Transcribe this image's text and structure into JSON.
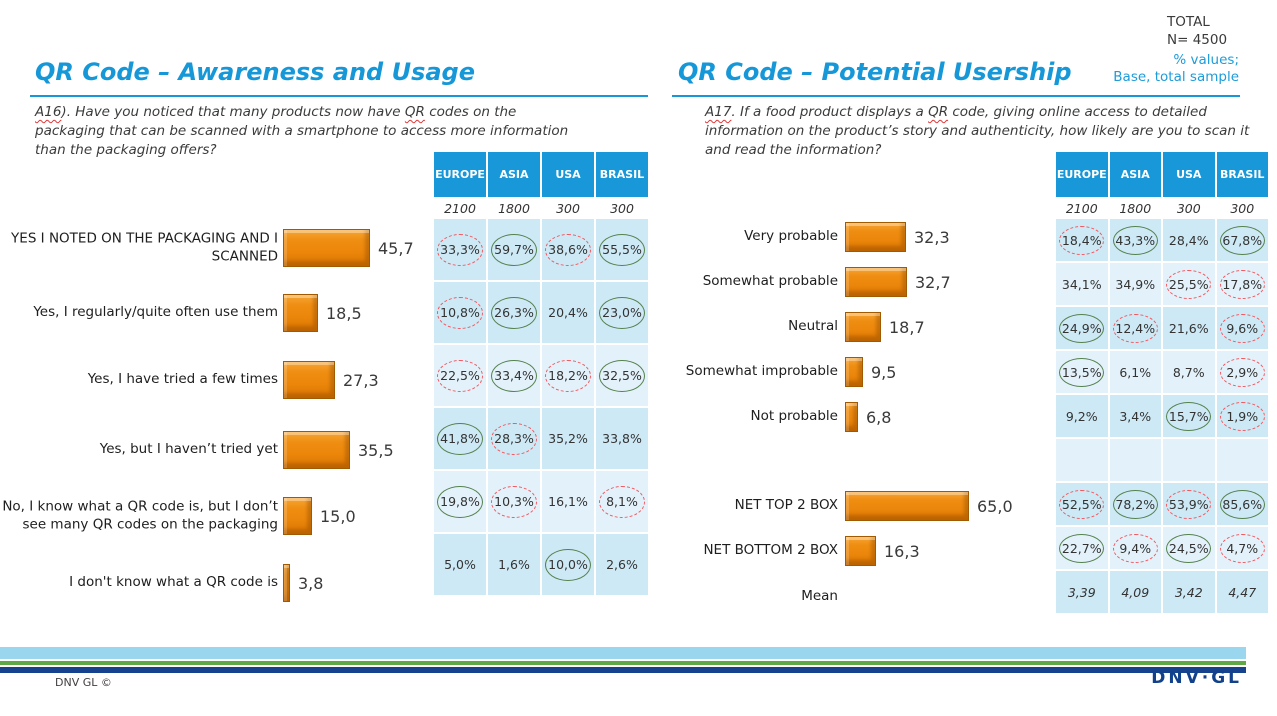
{
  "header": {
    "total_line1": "TOTAL",
    "total_line2": "N= 4500",
    "note_line1": "% values;",
    "note_line2": "Base, total sample"
  },
  "footer": {
    "copyright": "DNV GL ©",
    "logo": "DNV·GL"
  },
  "colors": {
    "accent_blue": "#1697D8",
    "table_header_blue": "#1898D8",
    "cell_dark": "#CDE9F5",
    "cell_light": "#E3F2FA",
    "bar_orange": "#EE8A10",
    "red_mark": "#F4565E",
    "green_mark": "#55814E",
    "stripe_lightblue": "#9AD7EF",
    "stripe_green": "#5FA848",
    "stripe_navy": "#16418C"
  },
  "left": {
    "title": "QR Code – Awareness and Usage",
    "question": {
      "p1": "A16",
      "p2": "). Have you noticed that many products now have ",
      "p3": "QR",
      "p4": " codes on the packaging that can be scanned with a smartphone to access more information than the packaging offers?"
    },
    "columns": [
      "EUROPE",
      "ASIA",
      "USA",
      "BRASIL"
    ],
    "bases": [
      "2100",
      "1800",
      "300",
      "300"
    ],
    "rows": [
      {
        "label": "YES I NOTED ON THE PACKAGING AND I SCANNED",
        "value": "45,7",
        "num": 45.7,
        "shade": "dark",
        "cells": [
          {
            "v": "33,3%",
            "m": "red"
          },
          {
            "v": "59,7%",
            "m": "green"
          },
          {
            "v": "38,6%",
            "m": "red"
          },
          {
            "v": "55,5%",
            "m": "green"
          }
        ]
      },
      {
        "label": "Yes, I regularly/quite often use them",
        "value": "18,5",
        "num": 18.5,
        "shade": "dark",
        "cells": [
          {
            "v": "10,8%",
            "m": "red"
          },
          {
            "v": "26,3%",
            "m": "green"
          },
          {
            "v": "20,4%",
            "m": "none"
          },
          {
            "v": "23,0%",
            "m": "green"
          }
        ]
      },
      {
        "label": "Yes, I have tried a few times",
        "value": "27,3",
        "num": 27.3,
        "shade": "light",
        "cells": [
          {
            "v": "22,5%",
            "m": "red"
          },
          {
            "v": "33,4%",
            "m": "green"
          },
          {
            "v": "18,2%",
            "m": "red"
          },
          {
            "v": "32,5%",
            "m": "green"
          }
        ]
      },
      {
        "label": "Yes, but I haven’t tried yet",
        "value": "35,5",
        "num": 35.5,
        "shade": "dark",
        "cells": [
          {
            "v": "41,8%",
            "m": "green"
          },
          {
            "v": "28,3%",
            "m": "red"
          },
          {
            "v": "35,2%",
            "m": "none"
          },
          {
            "v": "33,8%",
            "m": "none"
          }
        ]
      },
      {
        "label": "No, I know what a QR code is, but I don’t see many QR codes on the packaging",
        "value": "15,0",
        "num": 15.0,
        "shade": "light",
        "cells": [
          {
            "v": "19,8%",
            "m": "green"
          },
          {
            "v": "10,3%",
            "m": "red"
          },
          {
            "v": "16,1%",
            "m": "none"
          },
          {
            "v": "8,1%",
            "m": "red"
          }
        ]
      },
      {
        "label": "I don't know what a QR code is",
        "value": "3,8",
        "num": 3.8,
        "shade": "dark",
        "cells": [
          {
            "v": "5,0%",
            "m": "none"
          },
          {
            "v": "1,6%",
            "m": "none"
          },
          {
            "v": "10,0%",
            "m": "green"
          },
          {
            "v": "2,6%",
            "m": "none"
          }
        ]
      }
    ]
  },
  "right": {
    "title": "QR Code – Potential Usership",
    "question": {
      "p1": "A17",
      "p2": ". If a food product displays a ",
      "p3": "QR",
      "p4": " code, giving online access to detailed information on the product’s story and authenticity, how likely are you to scan it and read the information?"
    },
    "columns": [
      "EUROPE",
      "ASIA",
      "USA",
      "BRASIL"
    ],
    "bases": [
      "2100",
      "1800",
      "300",
      "300"
    ],
    "rows": [
      {
        "label": "Very probable",
        "value": "32,3",
        "num": 32.3,
        "shade": "dark",
        "cells": [
          {
            "v": "18,4%",
            "m": "red"
          },
          {
            "v": "43,3%",
            "m": "green"
          },
          {
            "v": "28,4%",
            "m": "none"
          },
          {
            "v": "67,8%",
            "m": "green"
          }
        ]
      },
      {
        "label": "Somewhat probable",
        "value": "32,7",
        "num": 32.7,
        "shade": "light",
        "cells": [
          {
            "v": "34,1%",
            "m": "none"
          },
          {
            "v": "34,9%",
            "m": "none"
          },
          {
            "v": "25,5%",
            "m": "red"
          },
          {
            "v": "17,8%",
            "m": "red"
          }
        ]
      },
      {
        "label": "Neutral",
        "value": "18,7",
        "num": 18.7,
        "shade": "dark",
        "cells": [
          {
            "v": "24,9%",
            "m": "green"
          },
          {
            "v": "12,4%",
            "m": "red"
          },
          {
            "v": "21,6%",
            "m": "none"
          },
          {
            "v": "9,6%",
            "m": "red"
          }
        ]
      },
      {
        "label": "Somewhat improbable",
        "value": "9,5",
        "num": 9.5,
        "shade": "light",
        "cells": [
          {
            "v": "13,5%",
            "m": "green"
          },
          {
            "v": "6,1%",
            "m": "none"
          },
          {
            "v": "8,7%",
            "m": "none"
          },
          {
            "v": "2,9%",
            "m": "red"
          }
        ]
      },
      {
        "label": "Not probable",
        "value": "6,8",
        "num": 6.8,
        "shade": "dark",
        "cells": [
          {
            "v": "9,2%",
            "m": "none"
          },
          {
            "v": "3,4%",
            "m": "none"
          },
          {
            "v": "15,7%",
            "m": "green"
          },
          {
            "v": "1,9%",
            "m": "red"
          }
        ]
      },
      {
        "label": "",
        "shade": "light",
        "cells": [
          {
            "v": "",
            "m": "none"
          },
          {
            "v": "",
            "m": "none"
          },
          {
            "v": "",
            "m": "none"
          },
          {
            "v": "",
            "m": "none"
          }
        ]
      },
      {
        "label": "NET TOP 2 BOX",
        "value": "65,0",
        "num": 65.0,
        "shade": "dark",
        "cells": [
          {
            "v": "52,5%",
            "m": "red"
          },
          {
            "v": "78,2%",
            "m": "green"
          },
          {
            "v": "53,9%",
            "m": "red"
          },
          {
            "v": "85,6%",
            "m": "green"
          }
        ]
      },
      {
        "label": "NET BOTTOM 2 BOX",
        "value": "16,3",
        "num": 16.3,
        "shade": "light",
        "cells": [
          {
            "v": "22,7%",
            "m": "green"
          },
          {
            "v": "9,4%",
            "m": "red"
          },
          {
            "v": "24,5%",
            "m": "green"
          },
          {
            "v": "4,7%",
            "m": "red"
          }
        ]
      },
      {
        "label": "Mean",
        "italic": true,
        "shade": "dark",
        "cells": [
          {
            "v": "3,39",
            "m": "none"
          },
          {
            "v": "4,09",
            "m": "none"
          },
          {
            "v": "3,42",
            "m": "none"
          },
          {
            "v": "4,47",
            "m": "none"
          }
        ]
      }
    ]
  },
  "chart_data": [
    {
      "type": "bar",
      "orientation": "horizontal",
      "title": "QR Code – Awareness and Usage",
      "question": "A16). Have you noticed that many products now have QR codes on the packaging that can be scanned with a smartphone to access more information than the packaging offers?",
      "unit": "% values; Base, total sample",
      "total_n": 4500,
      "categories": [
        "YES I NOTED ON THE PACKAGING AND I SCANNED",
        "Yes, I regularly/quite often use them",
        "Yes, I have tried a few times",
        "Yes, but I haven’t tried yet",
        "No, I know what a QR code is, but I don’t see many QR codes on the packaging",
        "I don't know what a QR code is"
      ],
      "values": [
        45.7,
        18.5,
        27.3,
        35.5,
        15.0,
        3.8
      ],
      "region_columns": [
        "EUROPE",
        "ASIA",
        "USA",
        "BRASIL"
      ],
      "region_bases": [
        2100,
        1800,
        300,
        300
      ],
      "region_values": [
        [
          33.3,
          59.7,
          38.6,
          55.5
        ],
        [
          10.8,
          26.3,
          20.4,
          23.0
        ],
        [
          22.5,
          33.4,
          18.2,
          32.5
        ],
        [
          41.8,
          28.3,
          35.2,
          33.8
        ],
        [
          19.8,
          10.3,
          16.1,
          8.1
        ],
        [
          5.0,
          1.6,
          10.0,
          2.6
        ]
      ],
      "significance_marks": [
        [
          "red-dashed",
          "green",
          "red-dashed",
          "green"
        ],
        [
          "red-dashed",
          "green",
          "none",
          "green"
        ],
        [
          "red-dashed",
          "green",
          "red-dashed",
          "green"
        ],
        [
          "green",
          "red-dashed",
          "none",
          "none"
        ],
        [
          "green",
          "red-dashed",
          "none",
          "red-dashed"
        ],
        [
          "none",
          "none",
          "green",
          "none"
        ]
      ]
    },
    {
      "type": "bar",
      "orientation": "horizontal",
      "title": "QR Code – Potential Usership",
      "question": "A17. If a food product displays a QR code, giving online access to detailed information on the product’s story and authenticity, how likely are you to scan it and read the information?",
      "unit": "% values; Base, total sample",
      "total_n": 4500,
      "categories": [
        "Very probable",
        "Somewhat probable",
        "Neutral",
        "Somewhat improbable",
        "Not probable",
        "NET TOP 2 BOX",
        "NET BOTTOM 2 BOX"
      ],
      "values": [
        32.3,
        32.7,
        18.7,
        9.5,
        6.8,
        65.0,
        16.3
      ],
      "region_columns": [
        "EUROPE",
        "ASIA",
        "USA",
        "BRASIL"
      ],
      "region_bases": [
        2100,
        1800,
        300,
        300
      ],
      "region_values": [
        [
          18.4,
          43.3,
          28.4,
          67.8
        ],
        [
          34.1,
          34.9,
          25.5,
          17.8
        ],
        [
          24.9,
          12.4,
          21.6,
          9.6
        ],
        [
          13.5,
          6.1,
          8.7,
          2.9
        ],
        [
          9.2,
          3.4,
          15.7,
          1.9
        ],
        [
          52.5,
          78.2,
          53.9,
          85.6
        ],
        [
          22.7,
          9.4,
          24.5,
          4.7
        ]
      ],
      "means": [
        3.39,
        4.09,
        3.42,
        4.47
      ],
      "significance_marks": [
        [
          "red-dashed",
          "green",
          "none",
          "green"
        ],
        [
          "none",
          "none",
          "red-dashed",
          "red-dashed"
        ],
        [
          "green",
          "red-dashed",
          "none",
          "red-dashed"
        ],
        [
          "green",
          "none",
          "none",
          "red-dashed"
        ],
        [
          "none",
          "none",
          "green",
          "red-dashed"
        ],
        [
          "red-dashed",
          "green",
          "red-dashed",
          "green"
        ],
        [
          "green",
          "red-dashed",
          "green",
          "red-dashed"
        ]
      ]
    }
  ]
}
